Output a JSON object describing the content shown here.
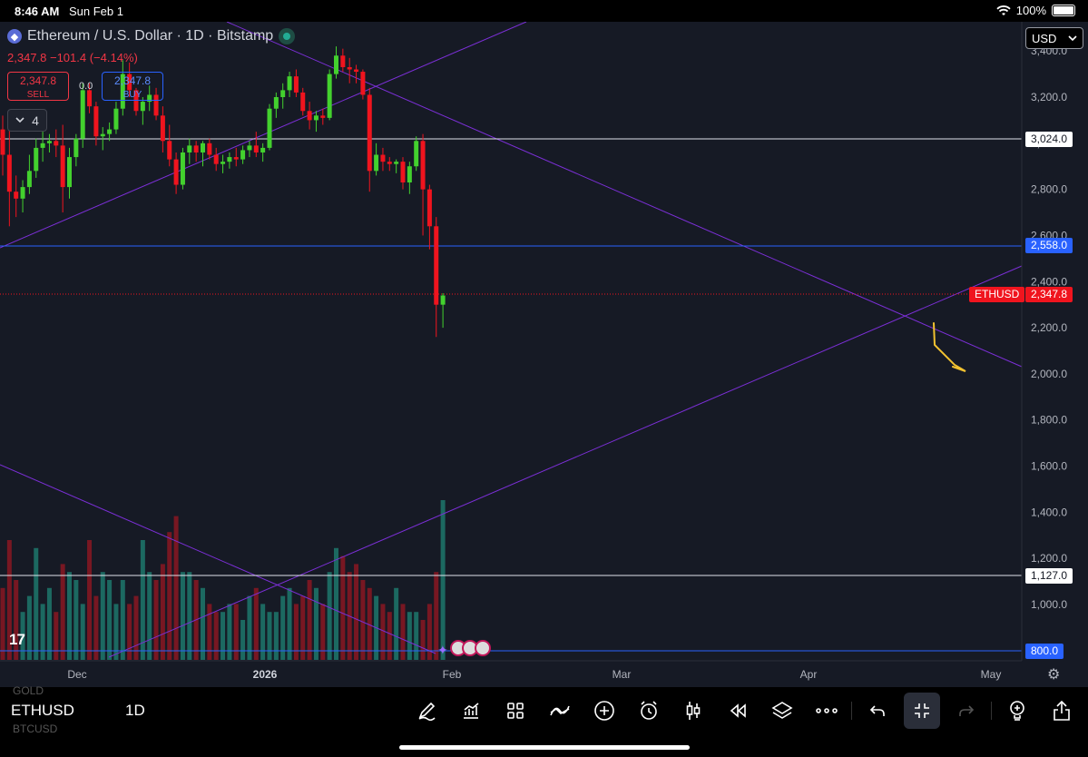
{
  "status_bar": {
    "time": "8:46 AM",
    "date": "Sun Feb 1",
    "battery": "100%"
  },
  "chart_header": {
    "title": "Ethereum / U.S. Dollar · 1D · Bitstamp",
    "change": "2,347.8 −101.4 (−4.14%)",
    "sell_price": "2,347.8",
    "sell_label": "SELL",
    "buy_price": "2,347.8",
    "buy_label": "BUY",
    "spread": "0.0",
    "indicators_count": "4"
  },
  "currency_selector": {
    "value": "USD"
  },
  "price_axis": {
    "ticks": [
      "3,400.0",
      "3,200.0",
      "3,000.0",
      "2,800.0",
      "2,600.0",
      "2,400.0",
      "2,200.0",
      "2,000.0",
      "1,800.0",
      "1,600.0",
      "1,400.0",
      "1,200.0",
      "1,000.0"
    ],
    "labels": {
      "level_3024": "3,024.0",
      "level_2558": "2,558.0",
      "last_symbol": "ETHUSD",
      "last_price": "2,347.8",
      "level_1127": "1,127.0",
      "level_800": "800.0"
    }
  },
  "time_axis": {
    "ticks": [
      "Dec",
      "2026",
      "Feb",
      "Mar",
      "Apr",
      "May"
    ]
  },
  "colors": {
    "up": "#43d12e",
    "down": "#f0141e",
    "trendline": "#7b2fd6",
    "blue_level": "#2962ff",
    "annotation": "#f2c230"
  },
  "bottom_bar": {
    "symbol_above": "GOLD",
    "symbol": "ETHUSD",
    "symbol_below": "BTCUSD",
    "interval": "1D",
    "tools": [
      "pen-icon",
      "chart-type-icon",
      "grid-icon",
      "indicators-icon",
      "add-icon",
      "alert-icon",
      "candles-icon",
      "replay-icon",
      "layers-icon",
      "more-icon",
      "undo-icon",
      "collapse-icon",
      "redo-icon",
      "idea-icon",
      "share-icon"
    ]
  },
  "chart_data": {
    "type": "candlestick",
    "title": "Ethereum / U.S. Dollar · 1D · Bitstamp",
    "x_ticks": [
      "Dec",
      "2026",
      "Feb",
      "Mar",
      "Apr",
      "May"
    ],
    "y_ticks": [
      1000,
      1200,
      1400,
      1600,
      1800,
      2000,
      2200,
      2400,
      2600,
      2800,
      3000,
      3200,
      3400
    ],
    "ylim": [
      780,
      3430
    ],
    "horizontal_levels": [
      3024.0,
      2558.0,
      1127.0,
      800.0
    ],
    "last_price": 2347.8,
    "grid": false,
    "candles_ohlc": [
      [
        3060,
        3120,
        2860,
        2950
      ],
      [
        2950,
        3060,
        2640,
        2790
      ],
      [
        2790,
        2860,
        2680,
        2760
      ],
      [
        2760,
        2840,
        2700,
        2810
      ],
      [
        2810,
        2950,
        2780,
        2880
      ],
      [
        2880,
        3020,
        2850,
        2980
      ],
      [
        2980,
        3050,
        2920,
        3000
      ],
      [
        3000,
        3040,
        2960,
        3010
      ],
      [
        3010,
        3060,
        2940,
        2990
      ],
      [
        2990,
        3080,
        2700,
        2810
      ],
      [
        2810,
        2980,
        2760,
        2940
      ],
      [
        2940,
        3040,
        2900,
        3020
      ],
      [
        3020,
        3260,
        2980,
        3230
      ],
      [
        3230,
        3260,
        3130,
        3160
      ],
      [
        3160,
        3180,
        2990,
        3030
      ],
      [
        3030,
        3070,
        2970,
        3040
      ],
      [
        3040,
        3090,
        3010,
        3060
      ],
      [
        3060,
        3180,
        3040,
        3150
      ],
      [
        3150,
        3360,
        3120,
        3300
      ],
      [
        3300,
        3350,
        3200,
        3230
      ],
      [
        3230,
        3240,
        3120,
        3140
      ],
      [
        3140,
        3200,
        3080,
        3180
      ],
      [
        3180,
        3250,
        3140,
        3210
      ],
      [
        3210,
        3240,
        3100,
        3120
      ],
      [
        3120,
        3160,
        2960,
        3010
      ],
      [
        3010,
        3080,
        2900,
        2930
      ],
      [
        2930,
        2960,
        2780,
        2820
      ],
      [
        2820,
        2980,
        2800,
        2960
      ],
      [
        2960,
        3020,
        2910,
        2990
      ],
      [
        2990,
        3010,
        2920,
        2960
      ],
      [
        2960,
        3010,
        2900,
        3000
      ],
      [
        3000,
        3020,
        2930,
        2950
      ],
      [
        2950,
        2980,
        2880,
        2910
      ],
      [
        2910,
        2950,
        2870,
        2920
      ],
      [
        2920,
        2960,
        2890,
        2940
      ],
      [
        2940,
        2980,
        2900,
        2930
      ],
      [
        2930,
        2990,
        2910,
        2970
      ],
      [
        2970,
        3010,
        2940,
        2990
      ],
      [
        2990,
        3050,
        2940,
        2960
      ],
      [
        2960,
        3000,
        2920,
        2980
      ],
      [
        2980,
        3170,
        2970,
        3150
      ],
      [
        3150,
        3220,
        3110,
        3200
      ],
      [
        3200,
        3260,
        3150,
        3230
      ],
      [
        3230,
        3310,
        3200,
        3290
      ],
      [
        3290,
        3320,
        3200,
        3220
      ],
      [
        3220,
        3240,
        3120,
        3140
      ],
      [
        3140,
        3180,
        3060,
        3100
      ],
      [
        3100,
        3140,
        3050,
        3120
      ],
      [
        3120,
        3150,
        3080,
        3110
      ],
      [
        3110,
        3320,
        3100,
        3300
      ],
      [
        3300,
        3420,
        3280,
        3380
      ],
      [
        3380,
        3410,
        3310,
        3330
      ],
      [
        3330,
        3370,
        3260,
        3320
      ],
      [
        3320,
        3340,
        3260,
        3310
      ],
      [
        3310,
        3320,
        3190,
        3210
      ],
      [
        3210,
        3240,
        2790,
        2880
      ],
      [
        2880,
        3000,
        2860,
        2950
      ],
      [
        2950,
        2980,
        2880,
        2920
      ],
      [
        2920,
        2940,
        2880,
        2910
      ],
      [
        2910,
        2930,
        2870,
        2920
      ],
      [
        2920,
        2940,
        2800,
        2830
      ],
      [
        2830,
        2920,
        2780,
        2900
      ],
      [
        2900,
        3030,
        2880,
        3010
      ],
      [
        3010,
        3040,
        2600,
        2800
      ],
      [
        2800,
        2820,
        2540,
        2640
      ],
      [
        2640,
        2680,
        2160,
        2300
      ],
      [
        2300,
        2350,
        2200,
        2340
      ]
    ],
    "volume_relative": [
      0.45,
      0.75,
      0.5,
      0.3,
      0.4,
      0.7,
      0.35,
      0.45,
      0.3,
      0.6,
      0.55,
      0.5,
      0.35,
      0.75,
      0.4,
      0.55,
      0.5,
      0.35,
      0.5,
      0.35,
      0.4,
      0.75,
      0.55,
      0.5,
      0.6,
      0.8,
      0.9,
      0.55,
      0.55,
      0.5,
      0.45,
      0.35,
      0.3,
      0.3,
      0.35,
      0.35,
      0.25,
      0.4,
      0.45,
      0.35,
      0.3,
      0.3,
      0.4,
      0.45,
      0.35,
      0.4,
      0.5,
      0.45,
      0.35,
      0.55,
      0.7,
      0.65,
      0.55,
      0.6,
      0.5,
      0.45,
      0.4,
      0.35,
      0.3,
      0.45,
      0.35,
      0.3,
      0.3,
      0.25,
      0.35,
      0.55,
      1.0
    ]
  }
}
